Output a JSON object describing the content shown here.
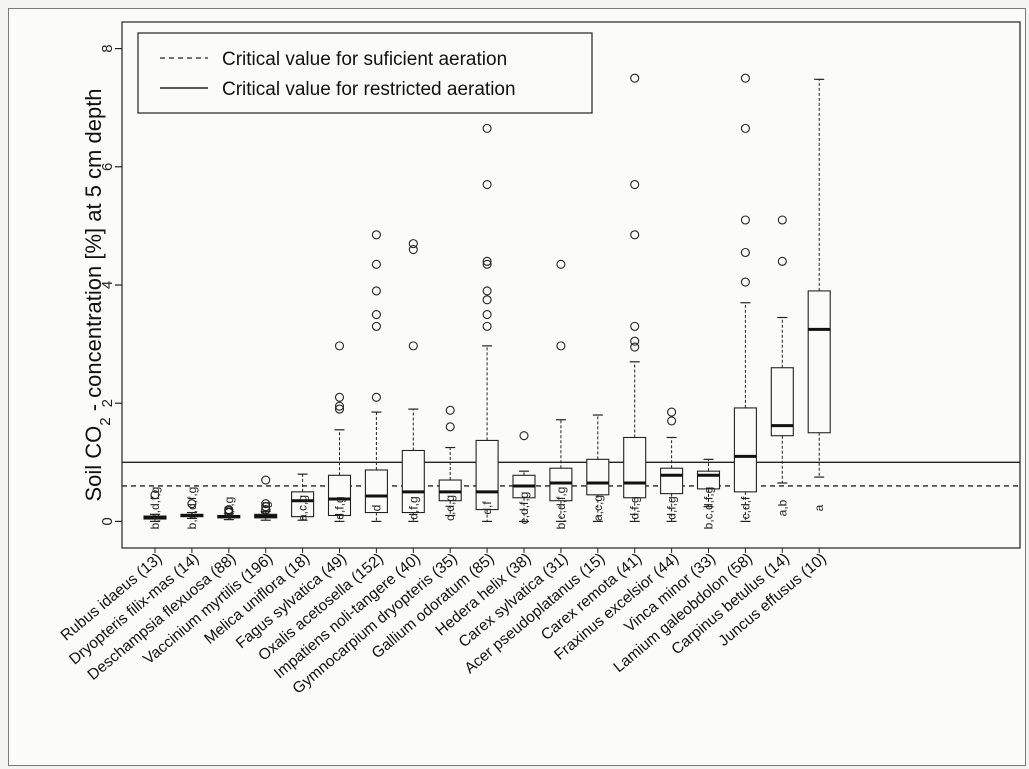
{
  "chart_data": {
    "type": "boxplot",
    "ylabel_parts": [
      "Soil CO",
      "2",
      " - concentration [%] at 5 cm depth"
    ],
    "ylim": [
      -0.45,
      8.45
    ],
    "yticks": [
      0,
      2,
      4,
      6,
      8
    ],
    "reference_lines": [
      {
        "name": "Critical value for suficient aeration",
        "value": 0.6,
        "style": "dashed"
      },
      {
        "name": "Critical value for restricted aeration",
        "value": 1.0,
        "style": "solid"
      }
    ],
    "legend_position": "top-left",
    "categories": [
      {
        "label": "Rubus idaeus (13)",
        "sig": "b,c,d,f,g",
        "whisker_low": 0.0,
        "q1": 0.04,
        "median": 0.07,
        "q3": 0.09,
        "whisker_high": 0.12,
        "outliers": [
          0.45
        ]
      },
      {
        "label": "Dryopteris filix-mas (14)",
        "sig": "b,c,d,f,g",
        "whisker_low": 0.05,
        "q1": 0.08,
        "median": 0.1,
        "q3": 0.12,
        "whisker_high": 0.15,
        "outliers": [
          0.3
        ]
      },
      {
        "label": "Deschampsia flexuosa (88)",
        "sig": "c,f,g",
        "whisker_low": 0.03,
        "q1": 0.06,
        "median": 0.08,
        "q3": 0.1,
        "whisker_high": 0.13,
        "outliers": [
          0.15,
          0.18,
          0.2
        ]
      },
      {
        "label": "Vaccinium myrtilis (196)",
        "sig": "f,g",
        "whisker_low": 0.02,
        "q1": 0.06,
        "median": 0.09,
        "q3": 0.12,
        "whisker_high": 0.17,
        "outliers": [
          0.2,
          0.25,
          0.3,
          0.7
        ]
      },
      {
        "label": "Melica uniflora (18)",
        "sig": "a,c,g",
        "whisker_low": 0.02,
        "q1": 0.08,
        "median": 0.35,
        "q3": 0.5,
        "whisker_high": 0.8,
        "outliers": []
      },
      {
        "label": "Fagus sylvatica (49)",
        "sig": "d,f,g",
        "whisker_low": 0.0,
        "q1": 0.1,
        "median": 0.38,
        "q3": 0.78,
        "whisker_high": 1.55,
        "outliers": [
          1.9,
          1.95,
          2.1,
          2.97
        ]
      },
      {
        "label": "Oxalis acetosella (152)",
        "sig": "d",
        "whisker_low": 0.0,
        "q1": 0.15,
        "median": 0.43,
        "q3": 0.87,
        "whisker_high": 1.85,
        "outliers": [
          2.1,
          3.3,
          3.5,
          3.9,
          4.35,
          4.85
        ]
      },
      {
        "label": "Impatiens noli-tangere (40)",
        "sig": "d,f,g",
        "whisker_low": 0.0,
        "q1": 0.15,
        "median": 0.5,
        "q3": 1.2,
        "whisker_high": 1.9,
        "outliers": [
          2.97,
          4.6,
          4.7
        ]
      },
      {
        "label": "Gymnocarpium dryopteris (35)",
        "sig": "c,d,g",
        "whisker_low": 0.1,
        "q1": 0.35,
        "median": 0.5,
        "q3": 0.7,
        "whisker_high": 1.25,
        "outliers": [
          1.6,
          1.88
        ]
      },
      {
        "label": "Gallium odoratum (85)",
        "sig": "d,f",
        "whisker_low": 0.0,
        "q1": 0.2,
        "median": 0.5,
        "q3": 1.37,
        "whisker_high": 2.97,
        "outliers": [
          3.3,
          3.5,
          3.75,
          3.9,
          4.35,
          4.4,
          5.7,
          6.65
        ]
      },
      {
        "label": "Hedera helix (38)",
        "sig": "c,d,f,g",
        "whisker_low": 0.0,
        "q1": 0.4,
        "median": 0.6,
        "q3": 0.78,
        "whisker_high": 0.85,
        "outliers": [
          1.45
        ]
      },
      {
        "label": "Carex sylvatica (31)",
        "sig": "b,c,d,f,g",
        "whisker_low": 0.0,
        "q1": 0.35,
        "median": 0.65,
        "q3": 0.9,
        "whisker_high": 1.72,
        "outliers": [
          2.97,
          4.35
        ]
      },
      {
        "label": "Acer pseudoplatanus (15)",
        "sig": "a,c,g",
        "whisker_low": 0.0,
        "q1": 0.45,
        "median": 0.65,
        "q3": 1.05,
        "whisker_high": 1.8,
        "outliers": []
      },
      {
        "label": "Carex remota (41)",
        "sig": "d,f,g",
        "whisker_low": 0.0,
        "q1": 0.4,
        "median": 0.65,
        "q3": 1.42,
        "whisker_high": 2.7,
        "outliers": [
          2.95,
          3.05,
          3.3,
          4.85,
          5.7,
          7.5
        ]
      },
      {
        "label": "Fraxinus excelsior (44)",
        "sig": "d,f,g",
        "whisker_low": 0.0,
        "q1": 0.47,
        "median": 0.78,
        "q3": 0.9,
        "whisker_high": 1.42,
        "outliers": [
          1.7,
          1.85
        ]
      },
      {
        "label": "Vinca minor (33)",
        "sig": "b,c,d,f,g",
        "whisker_low": 0.25,
        "q1": 0.55,
        "median": 0.78,
        "q3": 0.85,
        "whisker_high": 1.05,
        "outliers": []
      },
      {
        "label": "Lamium galeobdolon (58)",
        "sig": "c,d,f",
        "whisker_low": 0.0,
        "q1": 0.5,
        "median": 1.1,
        "q3": 1.92,
        "whisker_high": 3.7,
        "outliers": [
          4.05,
          4.55,
          5.1,
          6.65,
          7.5
        ]
      },
      {
        "label": "Carpinus betulus (14)",
        "sig": "a,b",
        "whisker_low": 0.65,
        "q1": 1.45,
        "median": 1.62,
        "q3": 2.6,
        "whisker_high": 3.45,
        "outliers": [
          4.4,
          5.1
        ]
      },
      {
        "label": "Juncus effusus (10)",
        "sig": "a",
        "whisker_low": 0.75,
        "q1": 1.5,
        "median": 3.25,
        "q3": 3.9,
        "whisker_high": 7.48,
        "outliers": []
      }
    ]
  }
}
